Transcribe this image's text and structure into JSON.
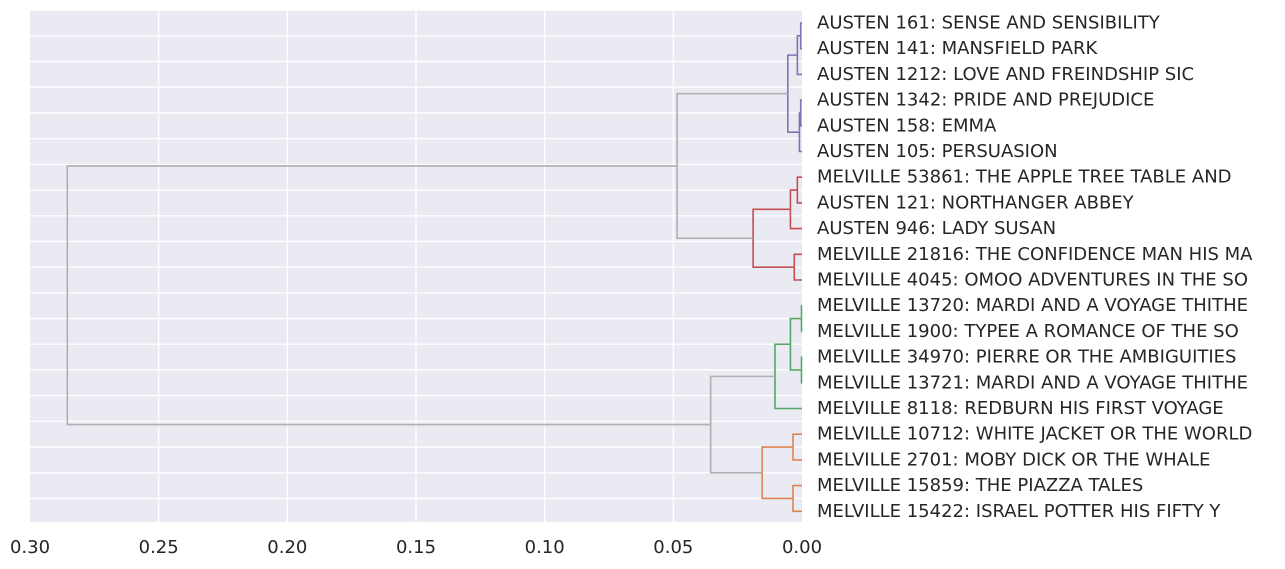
{
  "chart_data": {
    "type": "dendrogram",
    "orientation": "left",
    "xlim": [
      0.3,
      0.0
    ],
    "xticks": [
      0.3,
      0.25,
      0.2,
      0.15,
      0.1,
      0.05,
      0.0
    ],
    "xtick_labels": [
      "0.30",
      "0.25",
      "0.20",
      "0.15",
      "0.10",
      "0.05",
      "0.00"
    ],
    "grid": true,
    "colors": {
      "background": "#eaeaf2",
      "grid": "#ffffff",
      "above_threshold": "#b0b0b0",
      "cluster_purple": "#8172b3",
      "cluster_red": "#c44e52",
      "cluster_green": "#55a868",
      "cluster_orange": "#dd8452"
    },
    "leaves": [
      "AUSTEN 161: SENSE AND SENSIBILITY",
      "AUSTEN 141: MANSFIELD PARK",
      "AUSTEN 1212: LOVE AND FREINDSHIP SIC",
      "AUSTEN 1342: PRIDE AND PREJUDICE",
      "AUSTEN 158: EMMA",
      "AUSTEN 105: PERSUASION",
      "MELVILLE 53861: THE APPLE TREE TABLE AND",
      "AUSTEN 121: NORTHANGER ABBEY",
      "AUSTEN 946: LADY SUSAN",
      "MELVILLE 21816: THE CONFIDENCE MAN HIS MA",
      "MELVILLE 4045: OMOO ADVENTURES IN THE SO",
      "MELVILLE 13720: MARDI AND A VOYAGE THITHE",
      "MELVILLE 1900: TYPEE A ROMANCE OF THE SO",
      "MELVILLE 34970: PIERRE OR THE AMBIGUITIES",
      "MELVILLE 13721: MARDI AND A VOYAGE THITHE",
      "MELVILLE 8118: REDBURN HIS FIRST VOYAGE",
      "MELVILLE 10712: WHITE JACKET OR THE WORLD",
      "MELVILLE 2701: MOBY DICK OR THE WHALE",
      "MELVILLE 15859: THE PIAZZA TALES",
      "MELVILLE 15422: ISRAEL POTTER HIS FIFTY Y"
    ],
    "merges": [
      {
        "a": 0,
        "b": 1,
        "height": 0.0005,
        "color": "cluster_purple"
      },
      {
        "a": 20,
        "b": 2,
        "height": 0.0018,
        "color": "cluster_purple"
      },
      {
        "a": 3,
        "b": 4,
        "height": 0.0005,
        "color": "cluster_purple"
      },
      {
        "a": 22,
        "b": 5,
        "height": 0.001,
        "color": "cluster_purple"
      },
      {
        "a": 21,
        "b": 23,
        "height": 0.0055,
        "color": "cluster_purple"
      },
      {
        "a": 6,
        "b": 7,
        "height": 0.0018,
        "color": "cluster_red"
      },
      {
        "a": 25,
        "b": 8,
        "height": 0.0045,
        "color": "cluster_red"
      },
      {
        "a": 9,
        "b": 10,
        "height": 0.003,
        "color": "cluster_red"
      },
      {
        "a": 26,
        "b": 27,
        "height": 0.019,
        "color": "cluster_red"
      },
      {
        "a": 24,
        "b": 28,
        "height": 0.0485,
        "color": "above_threshold"
      },
      {
        "a": 11,
        "b": 12,
        "height": 0.0002,
        "color": "cluster_green"
      },
      {
        "a": 13,
        "b": 14,
        "height": 0.0002,
        "color": "cluster_green"
      },
      {
        "a": 30,
        "b": 31,
        "height": 0.0045,
        "color": "cluster_green"
      },
      {
        "a": 32,
        "b": 15,
        "height": 0.0105,
        "color": "cluster_green"
      },
      {
        "a": 16,
        "b": 17,
        "height": 0.0035,
        "color": "cluster_orange"
      },
      {
        "a": 18,
        "b": 19,
        "height": 0.0035,
        "color": "cluster_orange"
      },
      {
        "a": 34,
        "b": 35,
        "height": 0.0155,
        "color": "cluster_orange"
      },
      {
        "a": 33,
        "b": 36,
        "height": 0.0355,
        "color": "above_threshold"
      },
      {
        "a": 29,
        "b": 37,
        "height": 0.2855,
        "color": "above_threshold"
      }
    ]
  }
}
